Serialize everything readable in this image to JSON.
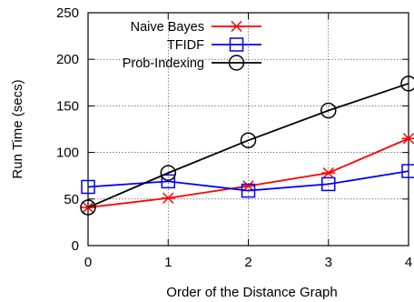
{
  "chart_data": {
    "type": "line",
    "xlabel": "Order of the Distance Graph",
    "ylabel": "Run Time (secs)",
    "xlim": [
      0,
      4
    ],
    "ylim": [
      0,
      250
    ],
    "x_ticks": [
      0,
      1,
      2,
      3,
      4
    ],
    "y_ticks": [
      0,
      50,
      100,
      150,
      200,
      250
    ],
    "grid": true,
    "legend_position": "top-left",
    "series": [
      {
        "name": "Naive Bayes",
        "color": "#ff0000",
        "marker": "asterisk",
        "x": [
          0,
          1,
          2,
          3,
          4
        ],
        "y": [
          41,
          51,
          64,
          78,
          115
        ]
      },
      {
        "name": "TFIDF",
        "color": "#0000ff",
        "marker": "square",
        "x": [
          0,
          1,
          2,
          3,
          4
        ],
        "y": [
          63,
          69,
          59,
          66,
          80
        ]
      },
      {
        "name": "Prob-Indexing",
        "color": "#000000",
        "marker": "circle",
        "x": [
          0,
          1,
          2,
          3,
          4
        ],
        "y": [
          41,
          78,
          113,
          145,
          174
        ]
      }
    ]
  }
}
